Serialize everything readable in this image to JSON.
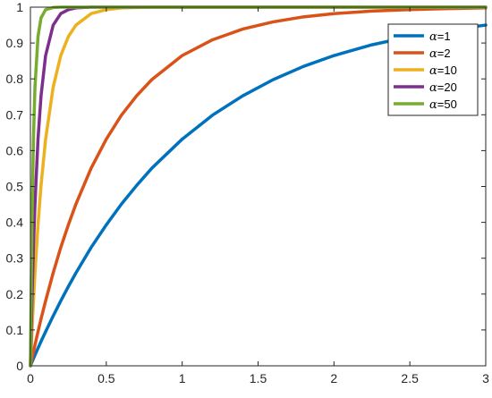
{
  "chart_data": {
    "type": "line",
    "title": "",
    "xlabel": "",
    "ylabel": "",
    "xlim": [
      0,
      3
    ],
    "ylim": [
      0,
      1
    ],
    "xticks": [
      0,
      0.5,
      1,
      1.5,
      2,
      2.5,
      3
    ],
    "xtick_labels": [
      "0",
      "0.5",
      "1",
      "1.5",
      "2",
      "2.5",
      "3"
    ],
    "yticks": [
      0,
      0.1,
      0.2,
      0.3,
      0.4,
      0.5,
      0.6,
      0.7,
      0.8,
      0.9,
      1
    ],
    "ytick_labels": [
      "0",
      "0.1",
      "0.2",
      "0.3",
      "0.4",
      "0.5",
      "0.6",
      "0.7",
      "0.8",
      "0.9",
      "1"
    ],
    "grid": false,
    "legend_placement": "top-right",
    "x": [
      0,
      0.01,
      0.02,
      0.03,
      0.05,
      0.07,
      0.1,
      0.15,
      0.2,
      0.25,
      0.3,
      0.4,
      0.5,
      0.6,
      0.7,
      0.8,
      1.0,
      1.2,
      1.4,
      1.6,
      1.8,
      2.0,
      2.25,
      2.5,
      2.75,
      3.0
    ],
    "series": [
      {
        "name": "α=1",
        "legend_symbol": "α",
        "legend_value": "=1",
        "color": "#0072BD",
        "values": [
          0,
          0.01,
          0.02,
          0.03,
          0.049,
          0.068,
          0.095,
          0.139,
          0.181,
          0.221,
          0.259,
          0.33,
          0.393,
          0.451,
          0.503,
          0.551,
          0.632,
          0.699,
          0.753,
          0.798,
          0.835,
          0.865,
          0.895,
          0.918,
          0.936,
          0.95
        ]
      },
      {
        "name": "α=2",
        "legend_symbol": "α",
        "legend_value": "=2",
        "color": "#D95319",
        "values": [
          0,
          0.02,
          0.039,
          0.058,
          0.095,
          0.131,
          0.181,
          0.259,
          0.33,
          0.393,
          0.451,
          0.551,
          0.632,
          0.699,
          0.753,
          0.798,
          0.865,
          0.909,
          0.939,
          0.959,
          0.973,
          0.982,
          0.989,
          0.993,
          0.996,
          0.998
        ]
      },
      {
        "name": "α=10",
        "legend_symbol": "α",
        "legend_value": "=10",
        "color": "#EDB120",
        "values": [
          0,
          0.095,
          0.181,
          0.259,
          0.393,
          0.503,
          0.632,
          0.777,
          0.865,
          0.918,
          0.95,
          0.982,
          0.993,
          0.998,
          0.999,
          1.0,
          1.0,
          1.0,
          1.0,
          1.0,
          1.0,
          1.0,
          1.0,
          1.0,
          1.0,
          1.0
        ]
      },
      {
        "name": "α=20",
        "legend_symbol": "α",
        "legend_value": "=20",
        "color": "#7E2F8E",
        "values": [
          0,
          0.181,
          0.33,
          0.451,
          0.632,
          0.753,
          0.865,
          0.95,
          0.982,
          0.993,
          0.998,
          1.0,
          1.0,
          1.0,
          1.0,
          1.0,
          1.0,
          1.0,
          1.0,
          1.0,
          1.0,
          1.0,
          1.0,
          1.0,
          1.0,
          1.0
        ]
      },
      {
        "name": "α=50",
        "legend_symbol": "α",
        "legend_value": "=50",
        "color": "#77AC30",
        "values": [
          0,
          0.393,
          0.632,
          0.777,
          0.918,
          0.97,
          0.993,
          0.999,
          1.0,
          1.0,
          1.0,
          1.0,
          1.0,
          1.0,
          1.0,
          1.0,
          1.0,
          1.0,
          1.0,
          1.0,
          1.0,
          1.0,
          1.0,
          1.0,
          1.0,
          1.0
        ]
      }
    ]
  }
}
